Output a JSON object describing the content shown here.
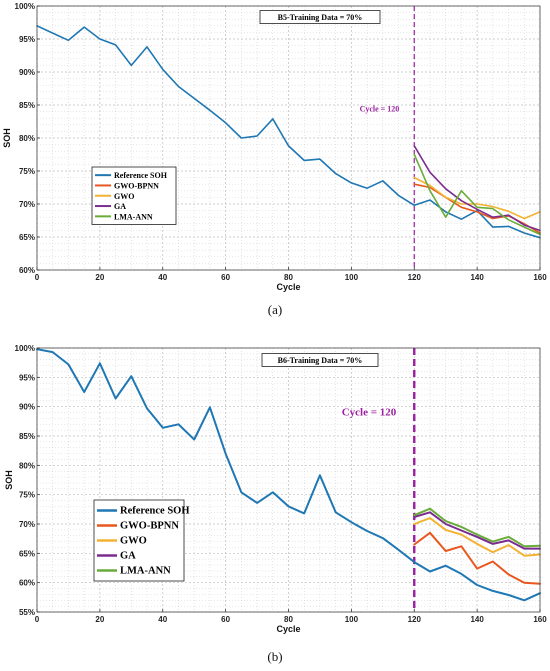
{
  "colors": {
    "reference": "#1f77b4",
    "gwo_bpnn": "#e8571e",
    "gwo": "#f2b233",
    "ga": "#7b2d8e",
    "lma_ann": "#6aac3a",
    "cycle_marker": "#9b1fa0",
    "grid": "#bdbdbd"
  },
  "chart_data": [
    {
      "type": "line",
      "caption": "(a)",
      "title": "B5-Training Data = 70%",
      "xlabel": "Cycle",
      "ylabel": "SOH",
      "xlim": [
        0,
        160
      ],
      "ylim": [
        60,
        100
      ],
      "x_ticks": [
        0,
        20,
        40,
        60,
        80,
        100,
        120,
        140,
        160
      ],
      "y_ticks": [
        "60%",
        "65%",
        "70%",
        "75%",
        "80%",
        "85%",
        "90%",
        "95%",
        "100%"
      ],
      "y_tick_values": [
        60,
        65,
        70,
        75,
        80,
        85,
        90,
        95,
        100
      ],
      "grid": true,
      "legend_position": "middle-left",
      "annotation": {
        "text": "Cycle = 120",
        "x": 120
      },
      "series": [
        {
          "name": "Reference SOH",
          "color_key": "reference",
          "x": [
            0,
            5,
            10,
            15,
            20,
            25,
            30,
            35,
            40,
            45,
            50,
            55,
            60,
            65,
            70,
            75,
            80,
            85,
            90,
            95,
            100,
            105,
            110,
            115,
            120,
            125,
            130,
            135,
            140,
            145,
            150,
            155,
            160
          ],
          "y": [
            97.0,
            95.9,
            94.8,
            96.8,
            95.0,
            94.1,
            91.0,
            93.8,
            90.4,
            87.8,
            86.0,
            84.2,
            82.3,
            80.0,
            80.3,
            82.9,
            78.8,
            76.6,
            76.8,
            74.6,
            73.2,
            72.4,
            73.5,
            71.3,
            69.8,
            70.6,
            68.8,
            67.7,
            69.0,
            66.5,
            66.6,
            65.6,
            64.9
          ]
        },
        {
          "name": "GWO-BPNN",
          "color_key": "gwo_bpnn",
          "x": [
            120,
            125,
            130,
            135,
            140,
            145,
            150,
            155,
            160
          ],
          "y": [
            73.0,
            72.5,
            71.0,
            69.5,
            68.8,
            67.8,
            68.2,
            67.0,
            65.6
          ]
        },
        {
          "name": "GWO",
          "color_key": "gwo",
          "x": [
            120,
            125,
            130,
            135,
            140,
            145,
            150,
            155,
            160
          ],
          "y": [
            74.0,
            72.8,
            71.0,
            70.0,
            70.0,
            69.6,
            68.9,
            67.8,
            68.8
          ]
        },
        {
          "name": "GA",
          "color_key": "ga",
          "x": [
            120,
            125,
            130,
            135,
            140,
            145,
            150,
            155,
            160
          ],
          "y": [
            78.8,
            74.8,
            72.3,
            70.5,
            69.2,
            68.0,
            68.3,
            66.8,
            66.0
          ]
        },
        {
          "name": "LMA-ANN",
          "color_key": "lma_ann",
          "x": [
            120,
            125,
            130,
            135,
            140,
            145,
            150,
            155,
            160
          ],
          "y": [
            77.5,
            72.0,
            68.0,
            72.0,
            69.5,
            69.3,
            67.6,
            66.5,
            65.4
          ]
        }
      ]
    },
    {
      "type": "line",
      "caption": "(b)",
      "title": "B6-Training Data = 70%",
      "xlabel": "Cycle",
      "ylabel": "SOH",
      "xlim": [
        0,
        160
      ],
      "ylim": [
        55,
        100
      ],
      "x_ticks": [
        0,
        20,
        40,
        60,
        80,
        100,
        120,
        140,
        160
      ],
      "y_ticks": [
        "55%",
        "60%",
        "65%",
        "70%",
        "75%",
        "80%",
        "85%",
        "90%",
        "95%",
        "100%"
      ],
      "y_tick_values": [
        55,
        60,
        65,
        70,
        75,
        80,
        85,
        90,
        95,
        100
      ],
      "grid": true,
      "legend_position": "bottom-left",
      "annotation": {
        "text": "Cycle = 120",
        "x": 120
      },
      "series": [
        {
          "name": "Reference SOH",
          "color_key": "reference",
          "x": [
            0,
            5,
            10,
            15,
            20,
            25,
            30,
            35,
            40,
            45,
            50,
            55,
            60,
            65,
            70,
            75,
            80,
            85,
            90,
            95,
            100,
            105,
            110,
            115,
            120,
            125,
            130,
            135,
            140,
            145,
            150,
            155,
            160
          ],
          "y": [
            99.8,
            99.3,
            97.2,
            92.5,
            97.4,
            91.4,
            95.2,
            89.7,
            86.4,
            87.0,
            84.4,
            89.9,
            82.0,
            75.4,
            73.6,
            75.4,
            73.0,
            71.8,
            78.3,
            72.0,
            70.3,
            68.8,
            67.6,
            65.6,
            63.5,
            61.9,
            62.9,
            61.5,
            59.6,
            58.6,
            57.9,
            57.0,
            58.2
          ]
        },
        {
          "name": "GWO-BPNN",
          "color_key": "gwo_bpnn",
          "x": [
            120,
            125,
            130,
            135,
            140,
            145,
            150,
            155,
            160
          ],
          "y": [
            66.5,
            68.5,
            65.4,
            66.2,
            62.4,
            63.6,
            61.4,
            60.0,
            59.8
          ]
        },
        {
          "name": "GWO",
          "color_key": "gwo",
          "x": [
            120,
            125,
            130,
            135,
            140,
            145,
            150,
            155,
            160
          ],
          "y": [
            70.0,
            71.0,
            69.0,
            68.2,
            66.6,
            65.2,
            66.4,
            64.6,
            64.8
          ]
        },
        {
          "name": "GA",
          "color_key": "ga",
          "x": [
            120,
            125,
            130,
            135,
            140,
            145,
            150,
            155,
            160
          ],
          "y": [
            71.2,
            72.0,
            70.0,
            68.9,
            67.8,
            66.6,
            67.2,
            65.8,
            65.8
          ]
        },
        {
          "name": "LMA-ANN",
          "color_key": "lma_ann",
          "x": [
            120,
            125,
            130,
            135,
            140,
            145,
            150,
            155,
            160
          ],
          "y": [
            71.5,
            72.6,
            70.5,
            69.5,
            68.2,
            67.0,
            67.8,
            66.2,
            66.3
          ]
        }
      ]
    }
  ]
}
